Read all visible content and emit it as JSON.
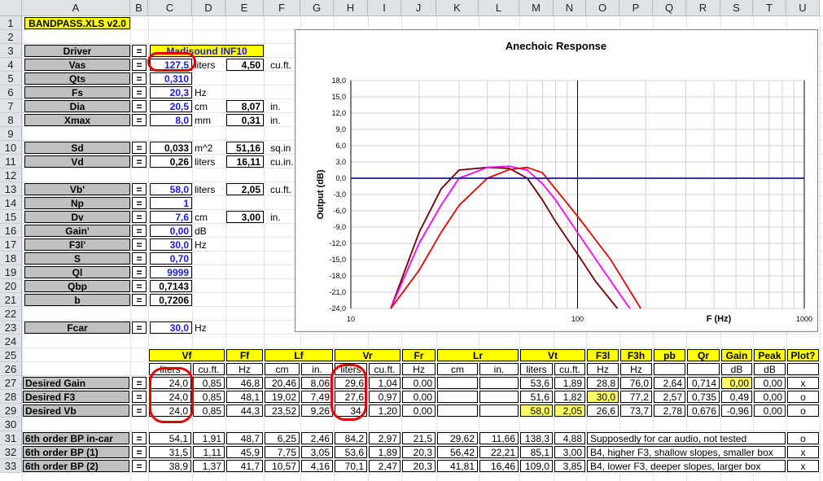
{
  "columns": [
    "A",
    "B",
    "C",
    "D",
    "E",
    "F",
    "G",
    "H",
    "I",
    "J",
    "K",
    "L",
    "M",
    "N",
    "O",
    "P",
    "Q",
    "R",
    "S",
    "T",
    "U"
  ],
  "rows": [
    "1",
    "2",
    "3",
    "4",
    "5",
    "6",
    "7",
    "8",
    "9",
    "10",
    "11",
    "12",
    "13",
    "14",
    "15",
    "16",
    "17",
    "18",
    "19",
    "20",
    "21",
    "22",
    "23",
    "24",
    "25",
    "26",
    "27",
    "28",
    "29",
    "30",
    "31",
    "32",
    "33"
  ],
  "title_cell": "BANDPASS.XLS v2.0",
  "eq": "=",
  "params": [
    {
      "label": "Driver",
      "value": "Madisound INF10"
    },
    {
      "label": "Vas",
      "value": "127,5",
      "unit": "liters",
      "alt": "4,50",
      "alt_unit": "cu.ft."
    },
    {
      "label": "Qts",
      "value": "0,310"
    },
    {
      "label": "Fs",
      "value": "20,3",
      "unit": "Hz"
    },
    {
      "label": "Dia",
      "value": "20,5",
      "unit": "cm",
      "alt": "8,07",
      "alt_unit": "in."
    },
    {
      "label": "Xmax",
      "value": "8,0",
      "unit": "mm",
      "alt": "0,31",
      "alt_unit": "in."
    },
    {
      "label": "Sd",
      "value": "0,033",
      "unit": "m^2",
      "alt": "51,16",
      "alt_unit": "sq.in"
    },
    {
      "label": "Vd",
      "value": "0,26",
      "unit": "liters",
      "alt": "16,11",
      "alt_unit": "cu.in."
    },
    {
      "label": "Vb'",
      "value": "58,0",
      "unit": "liters",
      "alt": "2,05",
      "alt_unit": "cu.ft."
    },
    {
      "label": "Np",
      "value": "1"
    },
    {
      "label": "Dv",
      "value": "7,6",
      "unit": "cm",
      "alt": "3,00",
      "alt_unit": "in."
    },
    {
      "label": "Gain'",
      "value": "0,00",
      "unit": "dB"
    },
    {
      "label": "F3l'",
      "value": "30,0",
      "unit": "Hz"
    },
    {
      "label": "S",
      "value": "0,70"
    },
    {
      "label": "Ql",
      "value": "9999"
    },
    {
      "label": "Qbp",
      "value": "0,7143"
    },
    {
      "label": "b",
      "value": "0,7206"
    },
    {
      "label": "Fcar",
      "value": "30,0",
      "unit": "Hz"
    }
  ],
  "table": {
    "groups": [
      "Vf",
      "Ff",
      "Lf",
      "Vr",
      "Fr",
      "Lr",
      "Vt",
      "F3l",
      "F3h",
      "pb",
      "Qr",
      "Gain",
      "Peak",
      "Plot?"
    ],
    "units": [
      "liters",
      "cu.ft.",
      "Hz",
      "cm",
      "in.",
      "liters",
      "cu.ft.",
      "Hz",
      "cm",
      "in.",
      "liters",
      "cu.ft.",
      "Hz",
      "Hz",
      "",
      "",
      "dB",
      "dB",
      ""
    ],
    "rows": [
      {
        "label": "Desired Gain",
        "cells": [
          "24,0",
          "0,85",
          "46,8",
          "20,46",
          "8,06",
          "29,6",
          "1,04",
          "0,00",
          "",
          "",
          "53,6",
          "1,89",
          "28,8",
          "76,0",
          "2,64",
          "0,714",
          "0,00",
          "0,00",
          "x"
        ]
      },
      {
        "label": "Desired F3",
        "cells": [
          "24,0",
          "0,85",
          "48,1",
          "19,02",
          "7,49",
          "27,6",
          "0,97",
          "0,00",
          "",
          "",
          "51,6",
          "1,82",
          "30,0",
          "77,2",
          "2,57",
          "0,735",
          "0,49",
          "0,00",
          "o"
        ]
      },
      {
        "label": "Desired Vb",
        "cells": [
          "24,0",
          "0,85",
          "44,3",
          "23,52",
          "9,26",
          "34,",
          "1,20",
          "0,00",
          "",
          "",
          "58,0",
          "2,05",
          "26,6",
          "73,7",
          "2,78",
          "0,676",
          "-0,96",
          "0,00",
          "o"
        ]
      }
    ],
    "rows2": [
      {
        "label": "6th order BP in-car",
        "cells": [
          "54,1",
          "1,91",
          "48,7",
          "6,25",
          "2,46",
          "84,2",
          "2,97",
          "21,5",
          "29,62",
          "11,66",
          "138,3",
          "4,88"
        ],
        "note": "Supposedly for car audio, not tested",
        "plot": "o"
      },
      {
        "label": "6th order BP (1)",
        "cells": [
          "31,5",
          "1,11",
          "45,9",
          "7,75",
          "3,05",
          "53,6",
          "1,89",
          "20,3",
          "56,42",
          "22,21",
          "85,1",
          "3,00"
        ],
        "note": "B4, higher F3, shallow slopes, smaller box",
        "plot": "x"
      },
      {
        "label": "6th order BP (2)",
        "cells": [
          "38,9",
          "1,37",
          "41,7",
          "10,57",
          "4,16",
          "70,1",
          "2,47",
          "20,3",
          "41,81",
          "16,46",
          "109,0",
          "3,85"
        ],
        "note": "B4, lower F3, deeper slopes, larger box",
        "plot": "x"
      }
    ]
  },
  "chart_data": {
    "type": "line",
    "title": "Anechoic Response",
    "xlabel": "F (Hz)",
    "ylabel": "Output (dB)",
    "xscale": "log",
    "xlim": [
      10,
      1000
    ],
    "ylim": [
      -24,
      18
    ],
    "xticks": [
      "10",
      "100",
      "1000"
    ],
    "yticks": [
      "18,0",
      "15,0",
      "12,0",
      "9,0",
      "6,0",
      "3,0",
      "0,0",
      "-3,0",
      "-6,0",
      "-9,0",
      "-12,0",
      "-15,0",
      "-18,0",
      "-21,0",
      "-24,0"
    ],
    "series": [
      {
        "color": "#6b0000",
        "x": [
          15,
          20,
          25,
          30,
          40,
          50,
          60,
          70,
          80,
          100,
          120,
          150
        ],
        "y": [
          -24,
          -10,
          -2,
          1.5,
          2.0,
          1.8,
          0,
          -4,
          -8,
          -14,
          -19,
          -24
        ]
      },
      {
        "color": "#ff00ff",
        "x": [
          15,
          20,
          25,
          30,
          40,
          50,
          60,
          70,
          80,
          100,
          130,
          170
        ],
        "y": [
          -24,
          -12,
          -5,
          0,
          2.0,
          2.2,
          1.5,
          -1,
          -4,
          -10,
          -17,
          -24
        ]
      },
      {
        "color": "#e00000",
        "x": [
          15,
          20,
          25,
          30,
          40,
          50,
          60,
          70,
          80,
          100,
          140,
          190
        ],
        "y": [
          -24,
          -17,
          -10,
          -5,
          0,
          1.6,
          2.0,
          1.0,
          -2,
          -7,
          -15,
          -24
        ]
      },
      {
        "color": "#1a1a90",
        "x": [
          10,
          1000
        ],
        "y": [
          0,
          0
        ]
      }
    ]
  }
}
